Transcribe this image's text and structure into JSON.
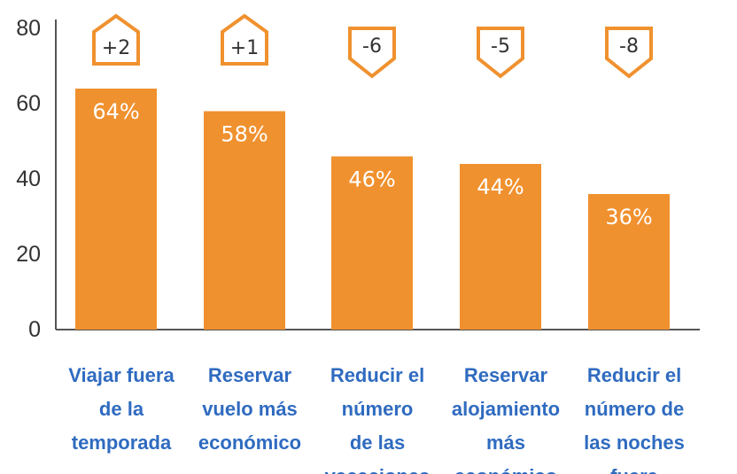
{
  "chart_data": {
    "type": "bar",
    "categories": [
      "Viajar fuera de la temporada",
      "Reservar vuelo más económico",
      "Reducir el número de las vacaciones",
      "Reservar alojamiento más económico",
      "Reducir el número de las noches fuera"
    ],
    "category_lines": [
      [
        "Viajar fuera",
        "de la",
        "temporada"
      ],
      [
        "Reservar",
        "vuelo más",
        "económico"
      ],
      [
        "Reducir el",
        "número",
        "de las",
        "vacaciones"
      ],
      [
        "Reservar",
        "alojamiento",
        "más",
        "económico"
      ],
      [
        "Reducir el",
        "número de",
        "las noches",
        "fuera"
      ]
    ],
    "values": [
      64,
      58,
      46,
      44,
      36
    ],
    "value_labels": [
      "64%",
      "58%",
      "46%",
      "44%",
      "36%"
    ],
    "changes": [
      2,
      1,
      -6,
      -5,
      -8
    ],
    "change_labels": [
      "+2",
      "+1",
      "-6",
      "-5",
      "-8"
    ],
    "y_ticks": [
      0,
      20,
      40,
      60,
      80
    ],
    "ylim": [
      0,
      80
    ],
    "grid": false,
    "colors": {
      "bar": "#f0912f",
      "badge": "#f0912f",
      "category_text": "#2f6bc0",
      "axis": "#555555"
    }
  }
}
